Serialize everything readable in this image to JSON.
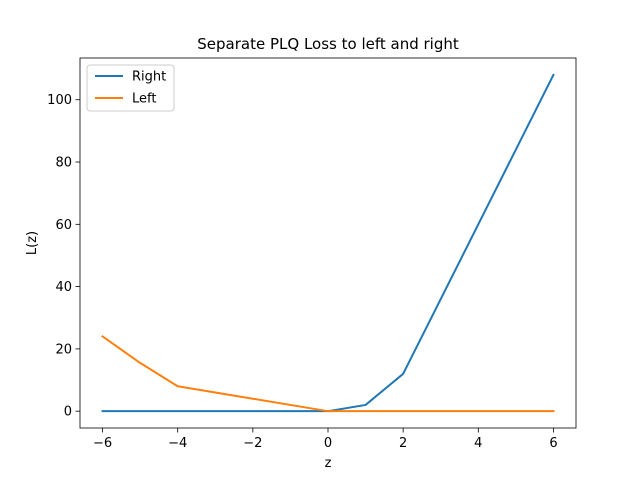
{
  "chart_data": {
    "type": "line",
    "title": "Separate PLQ Loss to left and right",
    "xlabel": "z",
    "ylabel": "L(z)",
    "xlim": [
      -6.6,
      6.6
    ],
    "ylim": [
      -5.4,
      113.4
    ],
    "x_ticks": [
      -6,
      -4,
      -2,
      0,
      2,
      4,
      6
    ],
    "x_tick_labels": [
      "−6",
      "−4",
      "−2",
      "0",
      "2",
      "4",
      "6"
    ],
    "y_ticks": [
      0,
      20,
      40,
      60,
      80,
      100
    ],
    "y_tick_labels": [
      "0",
      "20",
      "40",
      "60",
      "80",
      "100"
    ],
    "grid": false,
    "legend_position": "top-left",
    "series": [
      {
        "name": "Right",
        "color": "#1f77b4",
        "x": [
          -6,
          -5,
          -4,
          -3,
          -2,
          -1,
          0,
          1,
          2,
          3,
          4,
          5,
          6
        ],
        "y": [
          0,
          0,
          0,
          0,
          0,
          0,
          0,
          2,
          12,
          36,
          60,
          84,
          108
        ]
      },
      {
        "name": "Left",
        "color": "#ff7f0e",
        "x": [
          -6,
          -5,
          -4,
          -3,
          -2,
          -1,
          0,
          1,
          2,
          3,
          4,
          5,
          6
        ],
        "y": [
          24,
          15.5,
          8,
          6,
          4,
          2,
          0,
          0,
          0,
          0,
          0,
          0,
          0
        ]
      }
    ]
  }
}
